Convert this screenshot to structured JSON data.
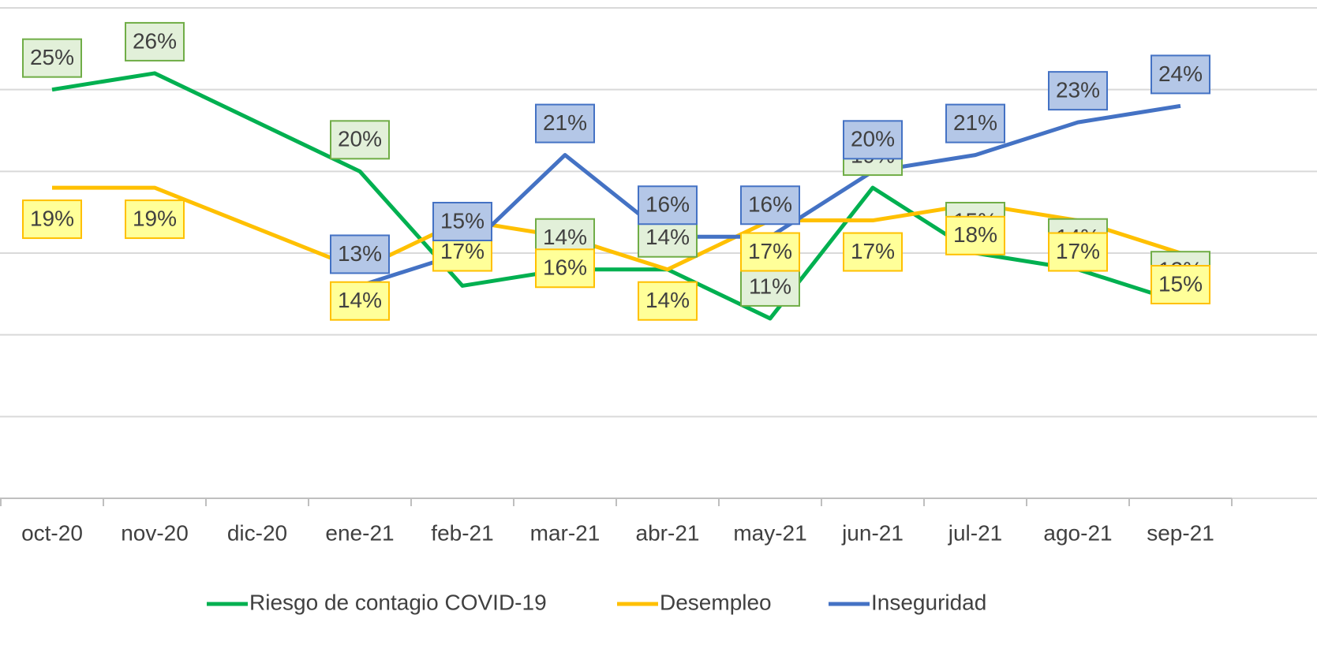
{
  "chart_data": {
    "type": "line",
    "categories": [
      "oct-20",
      "nov-20",
      "dic-20",
      "ene-21",
      "feb-21",
      "mar-21",
      "abr-21",
      "may-21",
      "jun-21",
      "jul-21",
      "ago-21",
      "sep-21"
    ],
    "series": [
      {
        "name": "Riesgo de contagio COVID-19",
        "color": "#00b050",
        "values": [
          25,
          26,
          null,
          20,
          13,
          14,
          14,
          11,
          19,
          15,
          14,
          12
        ],
        "value_labels": [
          "25%",
          "26%",
          null,
          "20%",
          null,
          "14%",
          "14%",
          "11%",
          "19%",
          "15%",
          "14%",
          "12%"
        ]
      },
      {
        "name": "Desempleo",
        "color": "#ffc000",
        "values": [
          19,
          19,
          null,
          14,
          17,
          16,
          14,
          17,
          17,
          18,
          17,
          15
        ],
        "value_labels": [
          "19%",
          "19%",
          null,
          "14%",
          "17%",
          "16%",
          "14%",
          "17%",
          "17%",
          "18%",
          "17%",
          "15%"
        ]
      },
      {
        "name": "Inseguridad",
        "color": "#4472c4",
        "values": [
          null,
          null,
          null,
          13,
          15,
          21,
          16,
          16,
          20,
          21,
          23,
          24
        ],
        "value_labels": [
          null,
          null,
          null,
          "13%",
          "15%",
          "21%",
          "16%",
          "16%",
          "20%",
          "21%",
          "23%",
          "24%"
        ]
      }
    ],
    "ylim": [
      0,
      30
    ],
    "yticks": [
      0,
      5,
      10,
      15,
      20,
      25,
      30
    ],
    "grid": true,
    "span_gaps": true,
    "legend": "bottom"
  }
}
